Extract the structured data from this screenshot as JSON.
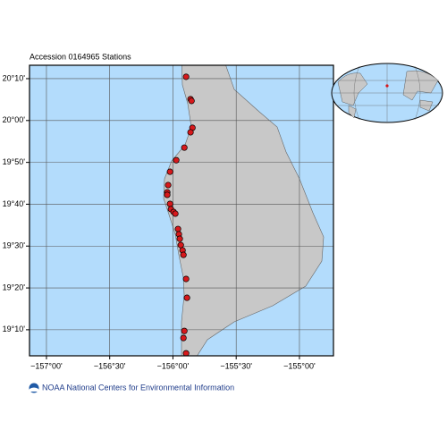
{
  "chart_data": {
    "type": "scatter",
    "title": "Accession 0164965 Stations",
    "source": "NOAA National Centers for Environmental Information",
    "color": "#d7191c",
    "grid": true,
    "x": [
      -155.896,
      -155.861,
      -155.853,
      -155.846,
      -155.861,
      -155.91,
      -155.974,
      -156.023,
      -156.038,
      -156.045,
      -156.045,
      -156.023,
      -156.016,
      -155.995,
      -155.981,
      -155.96,
      -155.953,
      -155.946,
      -155.938,
      -155.924,
      -155.917,
      -155.896,
      -155.889,
      -155.91,
      -155.917,
      -155.896
    ],
    "values": [
      20.174,
      20.085,
      20.078,
      19.971,
      19.953,
      19.892,
      19.842,
      19.796,
      19.743,
      19.714,
      19.704,
      19.668,
      19.647,
      19.636,
      19.629,
      19.568,
      19.547,
      19.529,
      19.504,
      19.483,
      19.465,
      19.369,
      19.294,
      19.162,
      19.134,
      19.073
    ],
    "xlim": [
      -157.134,
      -154.731
    ],
    "ylim": [
      19.063,
      20.22
    ],
    "xticks": [
      {
        "value": -157,
        "label": "−157°00'"
      },
      {
        "value": -156.5,
        "label": "−156°30'"
      },
      {
        "value": -156,
        "label": "−156°00'"
      },
      {
        "value": -155.5,
        "label": "−155°30'"
      },
      {
        "value": -155,
        "label": "−155°00'"
      }
    ],
    "yticks": [
      {
        "value": 19.1667,
        "label": "19°10'"
      },
      {
        "value": 19.3333,
        "label": "19°20'"
      },
      {
        "value": 19.5,
        "label": "19°30'"
      },
      {
        "value": 19.6667,
        "label": "19°40'"
      },
      {
        "value": 19.8333,
        "label": "19°50'"
      },
      {
        "value": 20,
        "label": "20°00'"
      },
      {
        "value": 20.1667,
        "label": "20°10'"
      }
    ]
  }
}
